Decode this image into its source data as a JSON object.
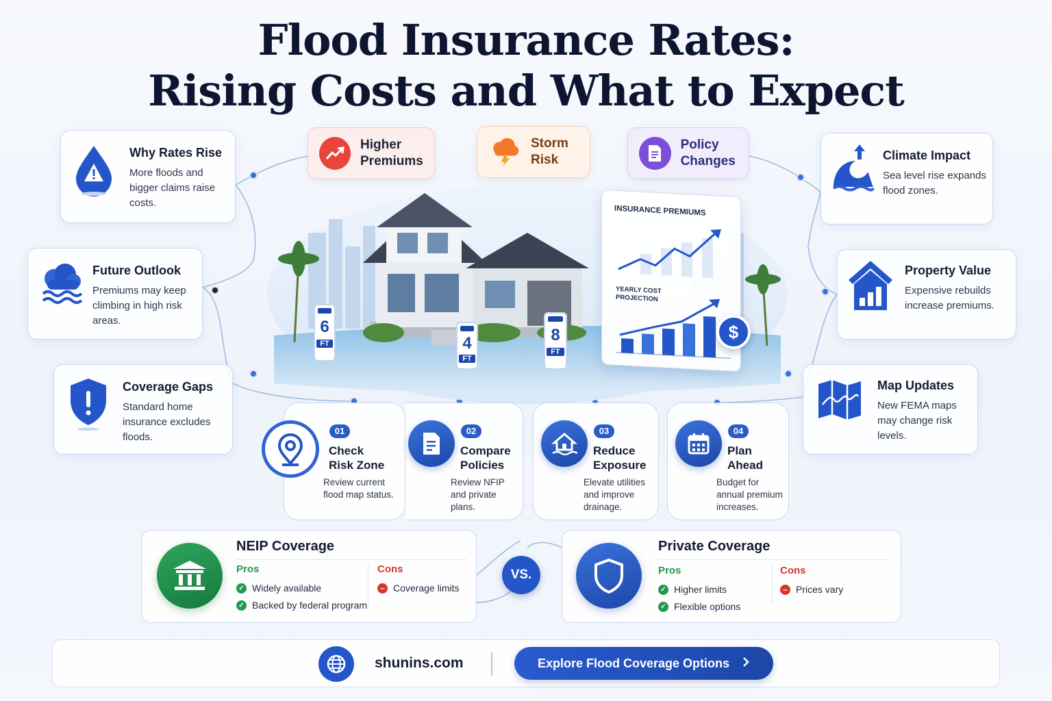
{
  "title": {
    "line1": "Flood Insurance Rates:",
    "line2": "Rising Costs and What to Expect"
  },
  "left_cards": [
    {
      "title": "Why Rates Rise",
      "desc": "More floods and bigger claims raise costs.",
      "icon": "water-drop-warning-icon"
    },
    {
      "title": "Future Outlook",
      "desc": "Premiums may keep climbing in high risk areas.",
      "icon": "cloud-waves-icon"
    },
    {
      "title": "Coverage Gaps",
      "desc": "Standard home insurance excludes floods.",
      "icon": "shield-alert-icon"
    }
  ],
  "right_cards": [
    {
      "title": "Climate Impact",
      "desc": "Sea level rise expands flood zones.",
      "icon": "rising-wave-icon"
    },
    {
      "title": "Property Value",
      "desc": "Expensive rebuilds increase premiums.",
      "icon": "house-chart-icon"
    },
    {
      "title": "Map Updates",
      "desc": "New FEMA maps may change risk levels.",
      "icon": "map-icon"
    }
  ],
  "top_pills": [
    {
      "label": "Higher Premiums",
      "icon": "trend-up-icon",
      "color": "#e8453c"
    },
    {
      "label": "Storm Risk",
      "icon": "storm-cloud-icon",
      "color": "#f07a2a"
    },
    {
      "label": "Policy Changes",
      "icon": "document-icon",
      "color": "#7b4fd6"
    }
  ],
  "illustration": {
    "chart_label_1": "INSURANCE PREMIUMS",
    "chart_label_2": "YEARLY COST PROJECTION",
    "chart_bar_levels": [
      0.3,
      0.42,
      0.55,
      0.68,
      0.85
    ],
    "dollar": "$",
    "gauges": [
      {
        "value": "6",
        "unit": "FT"
      },
      {
        "value": "4",
        "unit": "FT"
      },
      {
        "value": "8",
        "unit": "FT"
      }
    ]
  },
  "steps": [
    {
      "num": "01",
      "title": "Check Risk Zone",
      "desc": "Review current flood map status.",
      "icon": "location-pin-icon"
    },
    {
      "num": "02",
      "title": "Compare Policies",
      "desc": "Review NFIP and private plans.",
      "icon": "policy-document-icon"
    },
    {
      "num": "03",
      "title": "Reduce Exposure",
      "desc": "Elevate utilities and improve drainage.",
      "icon": "house-water-icon"
    },
    {
      "num": "04",
      "title": "Plan Ahead",
      "desc": "Budget for annual premium increases.",
      "icon": "calendar-icon"
    }
  ],
  "comparison": {
    "vs": "VS.",
    "left": {
      "title": "NEIP Coverage",
      "pros_label": "Pros",
      "cons_label": "Cons",
      "pros": [
        "Widely available",
        "Backed by federal program"
      ],
      "cons": [
        "Coverage limits"
      ],
      "icon": "government-building-icon"
    },
    "right": {
      "title": "Private Coverage",
      "pros_label": "Pros",
      "cons_label": "Cons",
      "pros": [
        "Higher limits",
        "Flexible options"
      ],
      "cons": [
        "Prices vary"
      ],
      "icon": "shield-icon"
    }
  },
  "footer": {
    "site": "shunins.com",
    "cta": "Explore Flood Coverage Options",
    "globe_icon": "globe-icon",
    "arrow_icon": "chevron-right-icon"
  }
}
